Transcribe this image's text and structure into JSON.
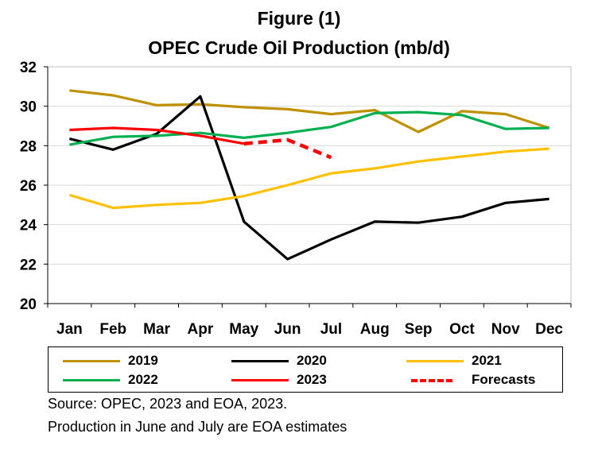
{
  "title_line1": "Figure (1)",
  "title_line2": "OPEC Crude Oil Production (mb/d)",
  "chart_data": {
    "type": "line",
    "title": "OPEC Crude Oil Production (mb/d)",
    "xlabel": "",
    "ylabel": "",
    "categories": [
      "Jan",
      "Feb",
      "Mar",
      "Apr",
      "May",
      "Jun",
      "Jul",
      "Aug",
      "Sep",
      "Oct",
      "Nov",
      "Dec"
    ],
    "ylim": [
      20,
      32
    ],
    "yticks": [
      20,
      22,
      24,
      26,
      28,
      30,
      32
    ],
    "grid": true,
    "legend_position": "bottom",
    "series": [
      {
        "name": "2019",
        "color": "#BF9000",
        "dash": false,
        "values": [
          30.8,
          30.55,
          30.05,
          30.1,
          29.95,
          29.85,
          29.6,
          29.8,
          28.7,
          29.75,
          29.6,
          28.9
        ]
      },
      {
        "name": "2020",
        "color": "#000000",
        "dash": false,
        "values": [
          28.35,
          27.8,
          28.6,
          30.5,
          24.15,
          22.25,
          23.25,
          24.15,
          24.1,
          24.4,
          25.1,
          25.3
        ]
      },
      {
        "name": "2021",
        "color": "#FFC000",
        "dash": false,
        "values": [
          25.5,
          24.85,
          25.0,
          25.1,
          25.45,
          26.0,
          26.6,
          26.85,
          27.2,
          27.45,
          27.7,
          27.85
        ]
      },
      {
        "name": "2022",
        "color": "#00B050",
        "dash": false,
        "values": [
          28.05,
          28.45,
          28.5,
          28.65,
          28.4,
          28.65,
          28.95,
          29.65,
          29.7,
          29.55,
          28.85,
          28.9
        ]
      },
      {
        "name": "2023",
        "color": "#FF0000",
        "dash": false,
        "values": [
          28.8,
          28.9,
          28.8,
          28.5,
          28.1,
          null,
          null,
          null,
          null,
          null,
          null,
          null
        ]
      },
      {
        "name": "Forecasts",
        "color": "#FF0000",
        "dash": true,
        "values": [
          null,
          null,
          null,
          null,
          28.1,
          28.3,
          27.4,
          null,
          null,
          null,
          null,
          null
        ]
      }
    ]
  },
  "notes": {
    "source": "Source: OPEC, 2023 and EOA, 2023.",
    "production": "Production in June and July are EOA estimates"
  }
}
